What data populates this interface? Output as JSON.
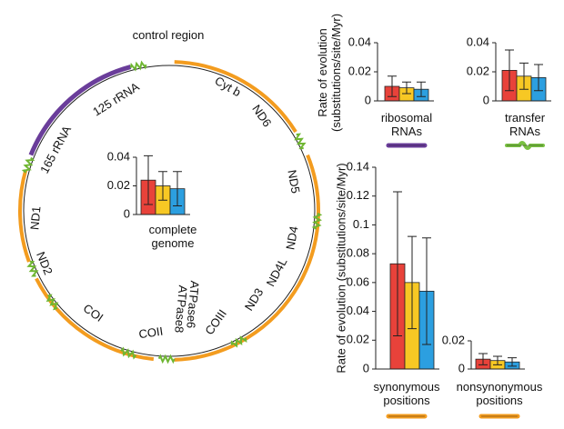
{
  "genome": {
    "control_region": "control region",
    "genes": [
      "125 rRNA",
      "165 rRNA",
      "ND1",
      "ND2",
      "COI",
      "COII",
      "ATPase8",
      "ATPase6",
      "COIII",
      "ND3",
      "ND4L",
      "ND4",
      "ND5",
      "ND6",
      "Cyt b"
    ]
  },
  "chart_data": [
    {
      "type": "bar",
      "xlabel": "complete genome",
      "values": [
        0.024,
        0.02,
        0.018
      ],
      "errors": [
        0.017,
        0.01,
        0.012
      ],
      "colors": [
        "#e8423a",
        "#f7c824",
        "#2c9fe0"
      ],
      "ylim": [
        0,
        0.04
      ],
      "yticks": [
        0,
        0.02,
        0.04
      ]
    },
    {
      "type": "bar",
      "xlabel": "ribosomal RNAs",
      "ylabel": "Rate of evolution (substitutions/site/Myr)",
      "values": [
        0.01,
        0.009,
        0.008
      ],
      "errors": [
        0.007,
        0.004,
        0.005
      ],
      "colors": [
        "#e8423a",
        "#f7c824",
        "#2c9fe0"
      ],
      "ylim": [
        0,
        0.04
      ],
      "yticks": [
        0,
        0.02,
        0.04
      ],
      "key": {
        "color": "#6a3d9a",
        "style": "line"
      }
    },
    {
      "type": "bar",
      "xlabel": "transfer RNAs",
      "values": [
        0.021,
        0.017,
        0.016
      ],
      "errors": [
        0.014,
        0.009,
        0.009
      ],
      "colors": [
        "#e8423a",
        "#f7c824",
        "#2c9fe0"
      ],
      "ylim": [
        0,
        0.04
      ],
      "yticks": [
        0,
        0.02,
        0.04
      ],
      "key": {
        "color": "#7ac143",
        "style": "wave"
      }
    },
    {
      "type": "bar",
      "xlabel": "synonymous positions",
      "ylabel": "Rate of evolution (substitutions/site/Myr)",
      "values": [
        0.073,
        0.06,
        0.054
      ],
      "errors": [
        0.05,
        0.032,
        0.037
      ],
      "colors": [
        "#e8423a",
        "#f7c824",
        "#2c9fe0"
      ],
      "ylim": [
        0,
        0.14
      ],
      "yticks": [
        0,
        0.02,
        0.04,
        0.06,
        0.08,
        0.1,
        0.12,
        0.14
      ],
      "key": {
        "color": "#f39c1f",
        "style": "line"
      }
    },
    {
      "type": "bar",
      "xlabel": "nonsynonymous positions",
      "values": [
        0.007,
        0.006,
        0.005
      ],
      "errors": [
        0.004,
        0.003,
        0.003
      ],
      "colors": [
        "#e8423a",
        "#f7c824",
        "#2c9fe0"
      ],
      "ylim": [
        0,
        0.02
      ],
      "yticks": [
        0,
        0.02
      ],
      "key": {
        "color": "#f39c1f",
        "style": "line"
      }
    }
  ]
}
